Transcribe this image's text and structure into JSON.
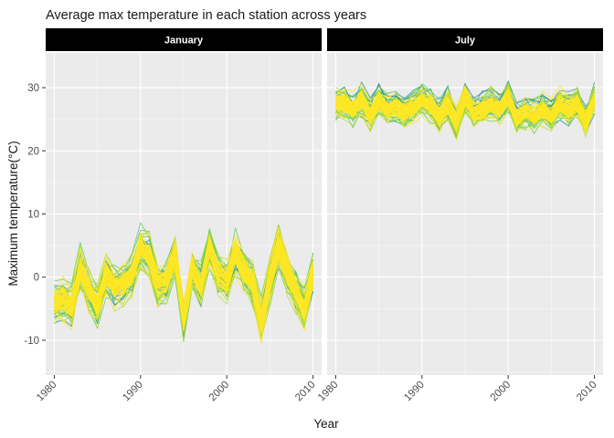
{
  "chart_data": {
    "type": "line",
    "title": "Average max temperature in each station across years",
    "xlabel": "Year",
    "ylabel": "Maximum temperature(°C)",
    "xlim": [
      1979,
      2011
    ],
    "ylim": [
      -15.5,
      35.5
    ],
    "x_ticks": [
      1980,
      1990,
      2000,
      2010
    ],
    "y_ticks": [
      -10,
      0,
      10,
      20,
      30
    ],
    "grid": true,
    "legend": "none",
    "colors": {
      "dark": "#21908d",
      "mid": "#5ec962",
      "light": "#b5de2b",
      "highlight": "#fde725"
    },
    "years": [
      1980,
      1981,
      1982,
      1983,
      1984,
      1985,
      1986,
      1987,
      1988,
      1989,
      1990,
      1991,
      1992,
      1993,
      1994,
      1995,
      1996,
      1997,
      1998,
      1999,
      2000,
      2001,
      2002,
      2003,
      2004,
      2005,
      2006,
      2007,
      2008,
      2009,
      2010
    ],
    "panels": [
      {
        "label": "January",
        "mean": [
          -4.0,
          -3.5,
          -4.5,
          1.5,
          -2.0,
          -4.5,
          0.5,
          -1.5,
          -1.0,
          0.5,
          5.0,
          3.5,
          -1.0,
          -0.5,
          3.5,
          -6.5,
          1.5,
          -1.5,
          5.0,
          0.5,
          -0.5,
          4.0,
          1.0,
          -1.0,
          -7.0,
          -0.5,
          5.0,
          1.0,
          -2.0,
          -5.0,
          1.0
        ],
        "spread": 3.2,
        "stations": 45
      },
      {
        "label": "July",
        "mean": [
          27.5,
          27.5,
          26.5,
          28.0,
          25.5,
          28.0,
          26.5,
          27.0,
          26.0,
          27.0,
          28.0,
          27.0,
          25.5,
          27.5,
          24.5,
          28.5,
          26.0,
          26.5,
          27.5,
          26.5,
          28.5,
          25.0,
          26.0,
          25.5,
          26.5,
          25.5,
          27.5,
          26.5,
          27.5,
          24.5,
          28.0
        ],
        "spread": 2.4,
        "stations": 45
      }
    ]
  }
}
